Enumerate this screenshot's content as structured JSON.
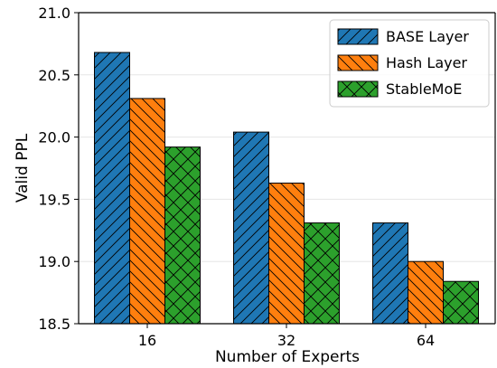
{
  "chart_data": {
    "type": "bar",
    "xlabel": "Number of Experts",
    "ylabel": "Valid PPL",
    "categories": [
      "16",
      "32",
      "64"
    ],
    "ylim": [
      18.5,
      21.0
    ],
    "yticks": [
      "18.5",
      "19.0",
      "19.5",
      "20.0",
      "20.5",
      "21.0"
    ],
    "grid": true,
    "legend_position": "top-right",
    "series": [
      {
        "name": "BASE Layer",
        "values": [
          20.68,
          20.04,
          19.31
        ],
        "color": "#1f77b4",
        "hatch": "diagonal-right"
      },
      {
        "name": "Hash Layer",
        "values": [
          20.31,
          19.63,
          19.0
        ],
        "color": "#ff7f0e",
        "hatch": "diagonal-left"
      },
      {
        "name": "StableMoE",
        "values": [
          19.92,
          19.31,
          18.84
        ],
        "color": "#2ca02c",
        "hatch": "crosshatch"
      }
    ]
  }
}
